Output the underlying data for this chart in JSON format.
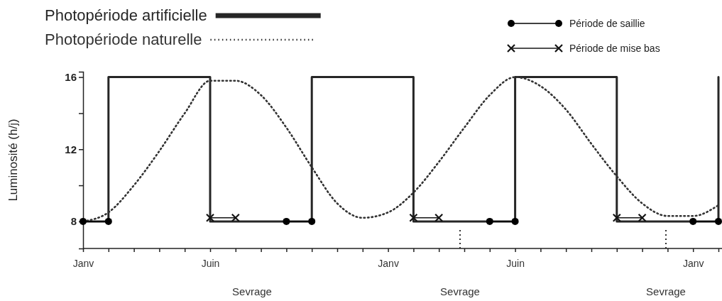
{
  "chart_data": {
    "type": "line",
    "ylabel": "Luminosité (h/j)",
    "categories": [
      "Janv",
      null,
      null,
      null,
      null,
      "Juin",
      null,
      null,
      null,
      null,
      null,
      null,
      "Janv",
      null,
      null,
      null,
      null,
      "Juin",
      null,
      null,
      null,
      null,
      null,
      null,
      "Janv",
      null
    ],
    "ylim": [
      6.5,
      16.3
    ],
    "yticks": [
      8,
      {
        "value": 10,
        "label": null
      },
      12,
      {
        "value": 14,
        "label": null
      },
      16
    ],
    "grid": false,
    "legend": "top",
    "marker": "none",
    "annotations": [
      "Sevrage",
      "Sevrage",
      "Sevrage"
    ],
    "series": [
      {
        "name": "Photopériode artificielle",
        "type": "step",
        "color": "#262626",
        "line_style": "solid",
        "values": [
          8,
          16,
          16,
          16,
          16,
          8,
          8,
          8,
          8,
          16,
          16,
          16,
          16,
          8,
          8,
          8,
          8,
          16,
          16,
          16,
          16,
          8,
          8,
          8,
          8,
          16
        ]
      },
      {
        "name": "Photopériode naturelle",
        "color": "#333333",
        "line_style": "dotted",
        "values": [
          8.0,
          8.5,
          10.0,
          11.9,
          14.0,
          15.8,
          15.8,
          15.0,
          13.2,
          11.0,
          9.0,
          8.2,
          8.5,
          9.6,
          11.3,
          13.2,
          15.0,
          16.0,
          15.5,
          14.2,
          12.3,
          10.5,
          9.0,
          8.3,
          8.3,
          8.9
        ]
      },
      {
        "name": "Période de saillie",
        "color": "#000000",
        "line_style": "solid",
        "marker": "circle",
        "values": [
          8,
          8,
          null,
          null,
          null,
          null,
          null,
          null,
          8,
          8,
          null,
          null,
          null,
          null,
          null,
          null,
          8,
          8,
          null,
          null,
          null,
          null,
          null,
          null,
          8,
          8
        ]
      },
      {
        "name": "Période de mise bas",
        "color": "#141414",
        "line_style": "solid",
        "marker": "cross",
        "values": [
          null,
          null,
          null,
          null,
          null,
          8.2,
          8.2,
          null,
          null,
          null,
          null,
          null,
          null,
          8.2,
          8.2,
          null,
          null,
          null,
          null,
          null,
          null,
          8.2,
          8.2,
          null,
          null,
          null
        ]
      }
    ]
  }
}
